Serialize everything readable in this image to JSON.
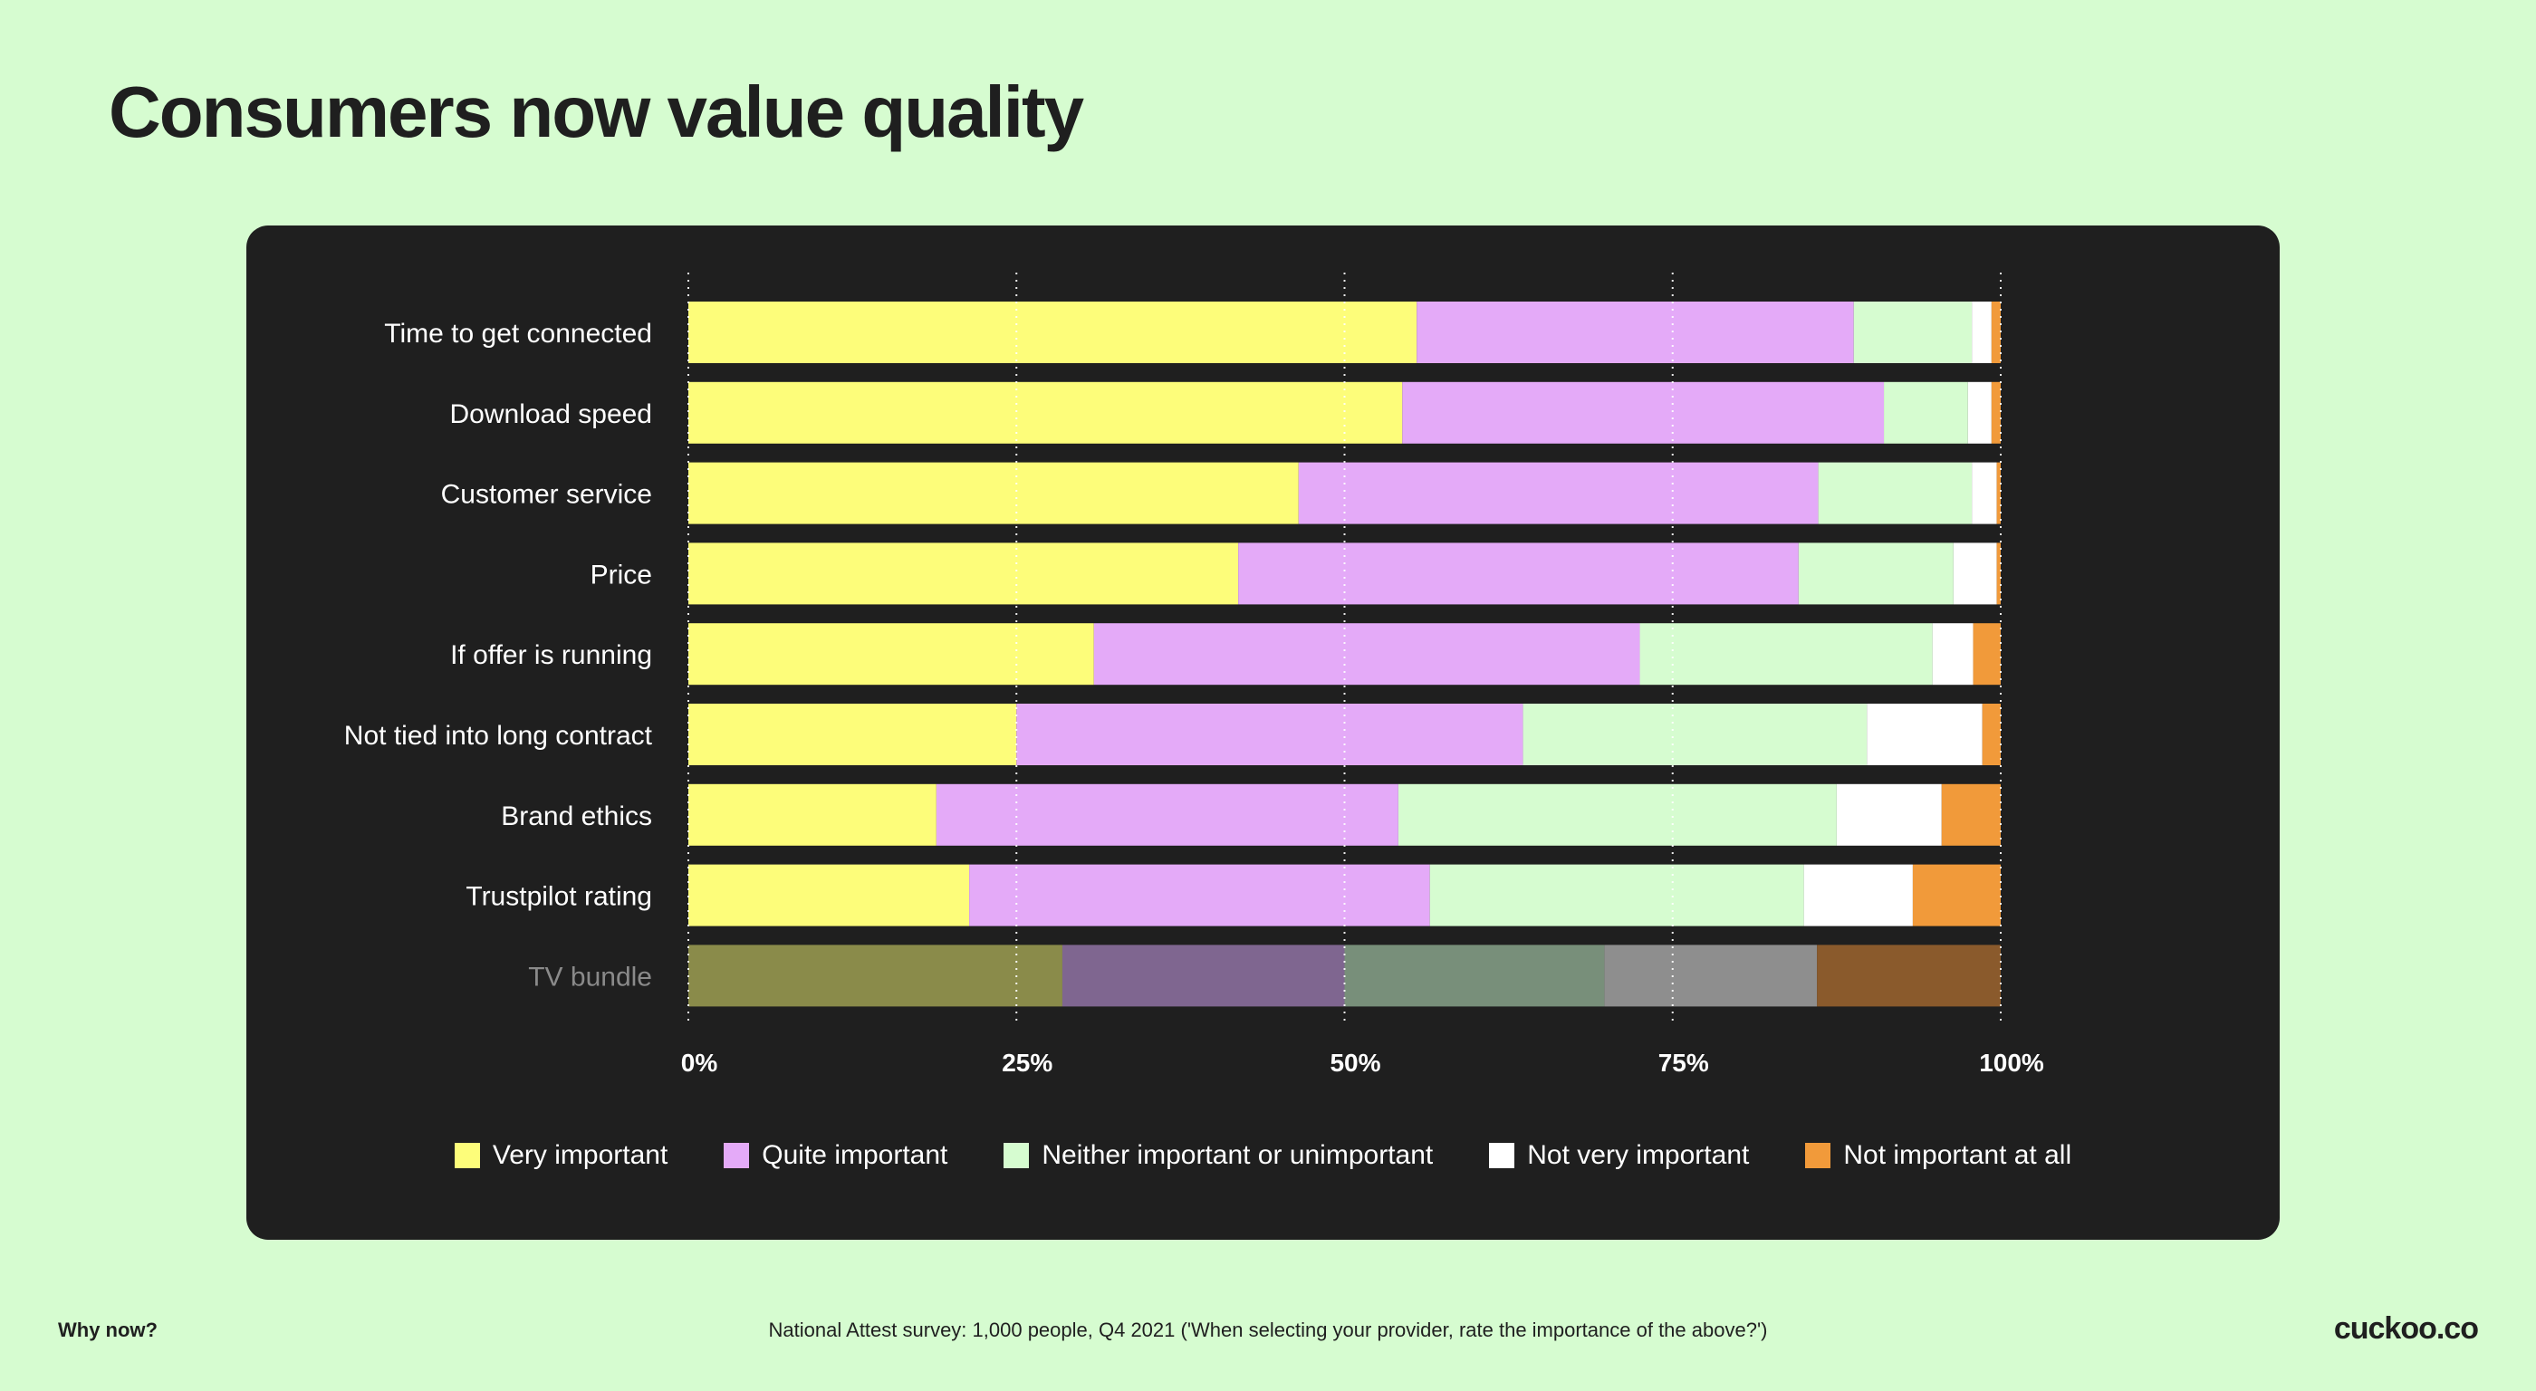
{
  "page": {
    "title": "Consumers now value quality",
    "footer_left": "Why now?",
    "footer_center": "National Attest survey: 1,000 people, Q4 2021 ('When selecting your provider, rate the importance of the above?')",
    "footer_right": "cuckoo.co"
  },
  "chart_data": {
    "type": "bar",
    "orientation": "horizontal",
    "stacked": true,
    "categories": [
      "Time to get connected",
      "Download speed",
      "Customer service",
      "Price",
      "If offer is running",
      "Not tied into long contract",
      "Brand ethics",
      "Trustpilot rating",
      "TV bundle"
    ],
    "series": [
      {
        "name": "Very important",
        "color": "#fdfd7a",
        "values": [
          55.5,
          54.4,
          46.5,
          41.9,
          30.9,
          25.0,
          18.9,
          21.4,
          28.5
        ]
      },
      {
        "name": "Quite important",
        "color": "#e4aaf8",
        "values": [
          33.3,
          36.7,
          39.6,
          42.7,
          41.6,
          38.6,
          35.2,
          35.1,
          21.5
        ]
      },
      {
        "name": "Neither important or unimportant",
        "color": "#d6fcd0",
        "values": [
          9.0,
          6.4,
          11.7,
          11.8,
          22.3,
          26.2,
          33.4,
          28.5,
          19.8
        ]
      },
      {
        "name": "Not very important",
        "color": "#ffffff",
        "values": [
          1.5,
          1.8,
          1.9,
          3.3,
          3.1,
          8.8,
          8.0,
          8.3,
          16.2
        ]
      },
      {
        "name": "Not important at all",
        "color": "#f19a3a",
        "values": [
          0.7,
          0.7,
          0.3,
          0.3,
          2.1,
          1.4,
          4.5,
          6.7,
          14.0
        ]
      }
    ],
    "dimmed_categories": [
      "TV bundle"
    ],
    "dimmed_colors": [
      "#8a8b4a",
      "#7f6690",
      "#788f7a",
      "#8e8e8e",
      "#8a5a2c"
    ],
    "x_ticks": [
      "0%",
      "25%",
      "50%",
      "75%",
      "100%"
    ],
    "xlim": [
      0,
      100
    ],
    "grid": true,
    "legend_position": "bottom"
  }
}
